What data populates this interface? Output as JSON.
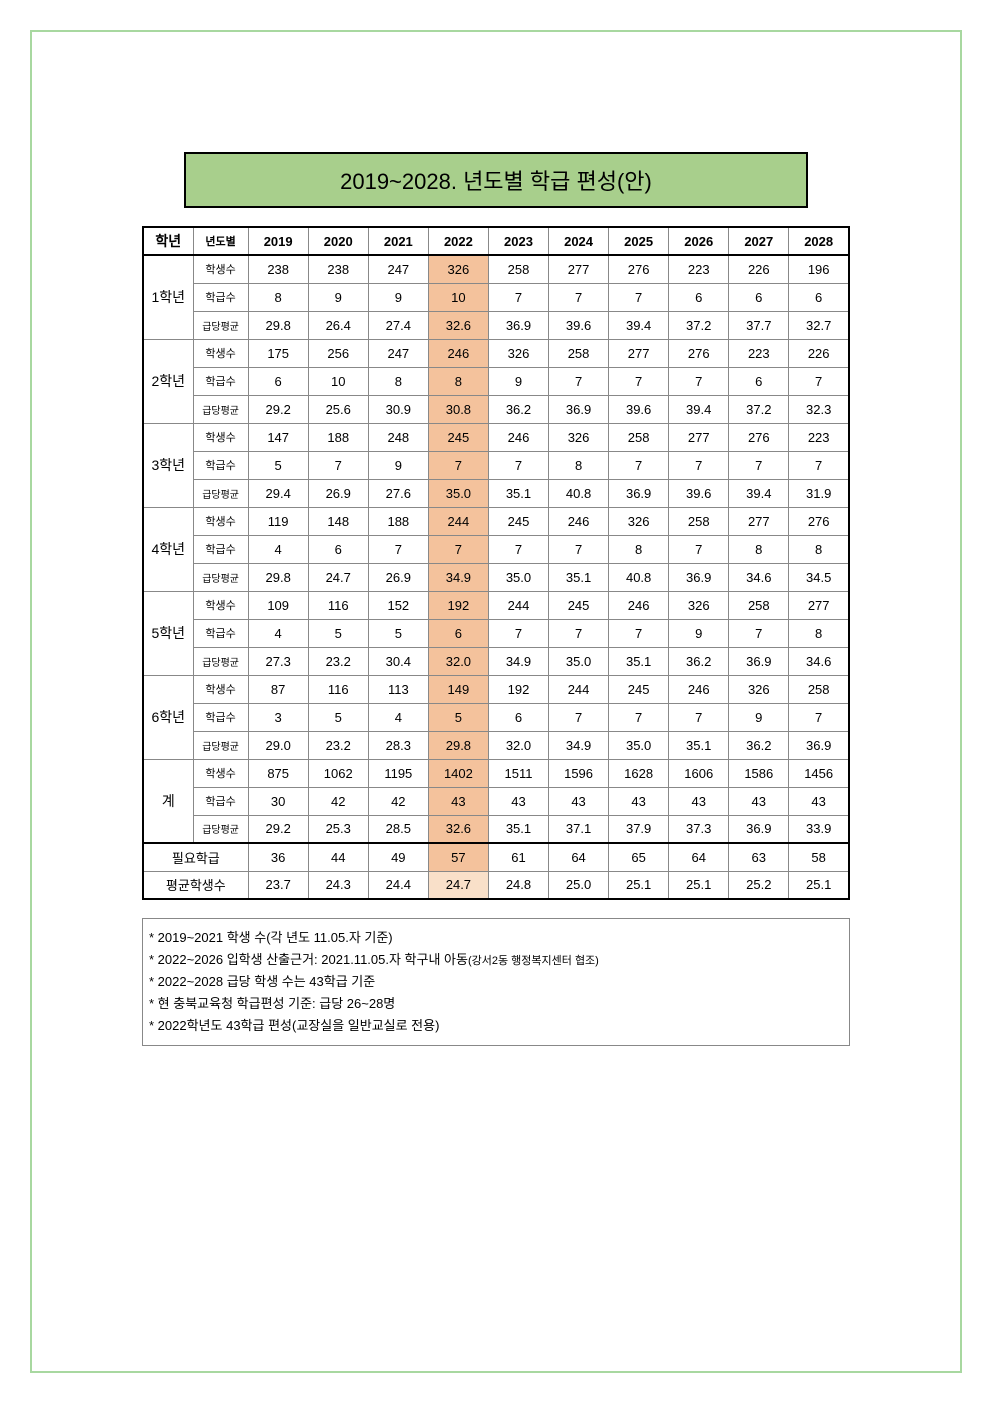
{
  "title": "2019~2028. 년도별 학급 편성(안)",
  "headers": {
    "grade": "학년",
    "yearLabel": "년도별",
    "years": [
      "2019",
      "2020",
      "2021",
      "2022",
      "2023",
      "2024",
      "2025",
      "2026",
      "2027",
      "2028"
    ]
  },
  "rowLabels": {
    "students": "학생수",
    "classes": "학급수",
    "avg": "급당평균"
  },
  "highlightYearIndex": 3,
  "grades": [
    {
      "name": "1학년",
      "students": [
        "238",
        "238",
        "247",
        "326",
        "258",
        "277",
        "276",
        "223",
        "226",
        "196"
      ],
      "classes": [
        "8",
        "9",
        "9",
        "10",
        "7",
        "7",
        "7",
        "6",
        "6",
        "6"
      ],
      "avg": [
        "29.8",
        "26.4",
        "27.4",
        "32.6",
        "36.9",
        "39.6",
        "39.4",
        "37.2",
        "37.7",
        "32.7"
      ]
    },
    {
      "name": "2학년",
      "students": [
        "175",
        "256",
        "247",
        "246",
        "326",
        "258",
        "277",
        "276",
        "223",
        "226"
      ],
      "classes": [
        "6",
        "10",
        "8",
        "8",
        "9",
        "7",
        "7",
        "7",
        "6",
        "7"
      ],
      "avg": [
        "29.2",
        "25.6",
        "30.9",
        "30.8",
        "36.2",
        "36.9",
        "39.6",
        "39.4",
        "37.2",
        "32.3"
      ]
    },
    {
      "name": "3학년",
      "students": [
        "147",
        "188",
        "248",
        "245",
        "246",
        "326",
        "258",
        "277",
        "276",
        "223"
      ],
      "classes": [
        "5",
        "7",
        "9",
        "7",
        "7",
        "8",
        "7",
        "7",
        "7",
        "7"
      ],
      "avg": [
        "29.4",
        "26.9",
        "27.6",
        "35.0",
        "35.1",
        "40.8",
        "36.9",
        "39.6",
        "39.4",
        "31.9"
      ]
    },
    {
      "name": "4학년",
      "students": [
        "119",
        "148",
        "188",
        "244",
        "245",
        "246",
        "326",
        "258",
        "277",
        "276"
      ],
      "classes": [
        "4",
        "6",
        "7",
        "7",
        "7",
        "7",
        "8",
        "7",
        "8",
        "8"
      ],
      "avg": [
        "29.8",
        "24.7",
        "26.9",
        "34.9",
        "35.0",
        "35.1",
        "40.8",
        "36.9",
        "34.6",
        "34.5"
      ]
    },
    {
      "name": "5학년",
      "students": [
        "109",
        "116",
        "152",
        "192",
        "244",
        "245",
        "246",
        "326",
        "258",
        "277"
      ],
      "classes": [
        "4",
        "5",
        "5",
        "6",
        "7",
        "7",
        "7",
        "9",
        "7",
        "8"
      ],
      "avg": [
        "27.3",
        "23.2",
        "30.4",
        "32.0",
        "34.9",
        "35.0",
        "35.1",
        "36.2",
        "36.9",
        "34.6"
      ]
    },
    {
      "name": "6학년",
      "students": [
        "87",
        "116",
        "113",
        "149",
        "192",
        "244",
        "245",
        "246",
        "326",
        "258"
      ],
      "classes": [
        "3",
        "5",
        "4",
        "5",
        "6",
        "7",
        "7",
        "7",
        "9",
        "7"
      ],
      "avg": [
        "29.0",
        "23.2",
        "28.3",
        "29.8",
        "32.0",
        "34.9",
        "35.0",
        "35.1",
        "36.2",
        "36.9"
      ]
    }
  ],
  "total": {
    "name": "계",
    "students": [
      "875",
      "1062",
      "1195",
      "1402",
      "1511",
      "1596",
      "1628",
      "1606",
      "1586",
      "1456"
    ],
    "classes": [
      "30",
      "42",
      "42",
      "43",
      "43",
      "43",
      "43",
      "43",
      "43",
      "43"
    ],
    "avg": [
      "29.2",
      "25.3",
      "28.5",
      "32.6",
      "35.1",
      "37.1",
      "37.9",
      "37.3",
      "36.9",
      "33.9"
    ]
  },
  "summary": {
    "neededLabel": "필요학급",
    "needed": [
      "36",
      "44",
      "49",
      "57",
      "61",
      "64",
      "65",
      "64",
      "63",
      "58"
    ],
    "avgStudentsLabel": "평균학생수",
    "avgStudents": [
      "23.7",
      "24.3",
      "24.4",
      "24.7",
      "24.8",
      "25.0",
      "25.1",
      "25.1",
      "25.2",
      "25.1"
    ]
  },
  "notes": [
    {
      "text": "* 2019~2021 학생 수(각 년도 11.05.자 기준)"
    },
    {
      "text": "* 2022~2026 입학생 산출근거: 2021.11.05.자 학구내 아동",
      "sub": "(강서2동 행정복지센터 협조)"
    },
    {
      "text": "* 2022~2028 급당 학생 수는 43학급 기준"
    },
    {
      "text": "* 현 충북교육청 학급편성 기준: 급당 26~28명"
    },
    {
      "text": "* 2022학년도 43학급 편성(교장실을 일반교실로 전용)"
    }
  ],
  "colors": {
    "titleBg": "#a8cf8c",
    "highlight": "#f4c29c",
    "highlightLight": "#f9e0c9",
    "frameBorder": "#a8d8a0"
  }
}
